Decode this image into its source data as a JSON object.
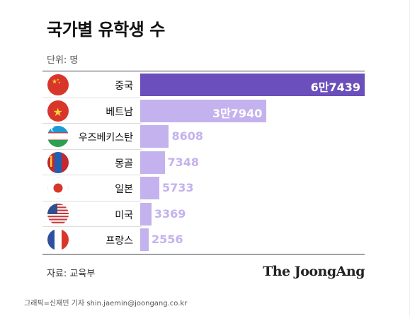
{
  "header": {
    "title": "국가별 유학생 수",
    "unit": "단위: 명"
  },
  "chart_data": {
    "type": "bar",
    "orientation": "horizontal",
    "title": "국가별 유학생 수",
    "unit": "단위: 명",
    "categories": [
      "중국",
      "베트남",
      "우즈베키스탄",
      "몽골",
      "일본",
      "미국",
      "프랑스"
    ],
    "values": [
      67439,
      37940,
      8608,
      7348,
      5733,
      3369,
      2556
    ],
    "value_labels": [
      "6만7439",
      "3만7940",
      "8608",
      "7348",
      "5733",
      "3369",
      "2556"
    ],
    "flags": [
      "china-flag-icon",
      "vietnam-flag-icon",
      "uzbekistan-flag-icon",
      "mongolia-flag-icon",
      "japan-flag-icon",
      "usa-flag-icon",
      "france-flag-icon"
    ],
    "colors": {
      "highlight": "#6b4fbb",
      "bar": "#c4b2ee",
      "bar_label_inside": "#ffffff",
      "bar_label_outside": "#c4b2ee"
    }
  },
  "footer": {
    "source": "자료: 교육부",
    "logo": "The JoongAng",
    "credit": "그래픽=신재민 기자 shin.jaemin@joongang.co.kr"
  }
}
